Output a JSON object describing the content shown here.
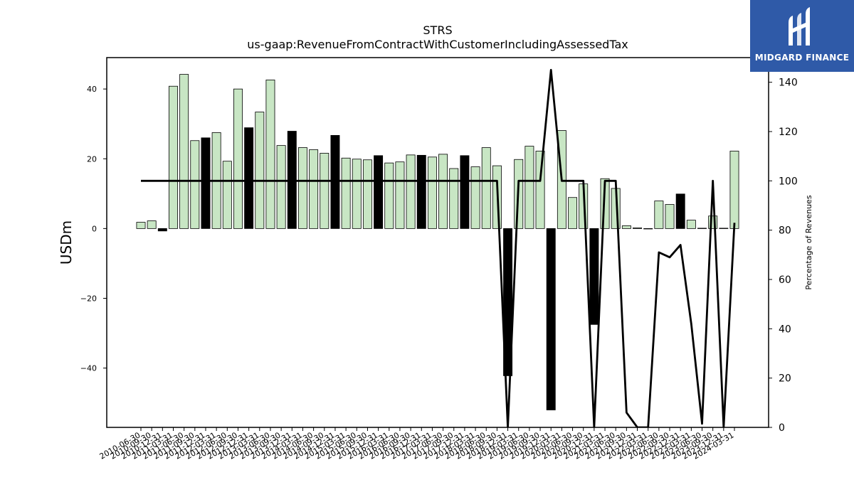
{
  "brand": {
    "name": "MIDGARD FINANCE",
    "logo_color": "#2f5aa8"
  },
  "chart_data": {
    "type": "bar",
    "title": "STRS",
    "subtitle": "us-gaap:RevenueFromContractWithCustomerIncludingAssessedTax",
    "ylabel": "USDm",
    "y2label": "Percentage of Revenues",
    "ylim": [
      -57,
      49
    ],
    "y2lim": [
      0,
      150
    ],
    "yticks": [
      -40,
      -20,
      0,
      20,
      40
    ],
    "y2ticks": [
      0,
      20,
      40,
      60,
      80,
      100,
      120,
      140
    ],
    "colors": {
      "positive_bar": "#c8e6c4",
      "highlight_bar": "#000000",
      "line": "#000000"
    },
    "categories": [
      "2010-06-30",
      "2010-09-30",
      "2010-12-31",
      "2011-03-31",
      "2011-06-30",
      "2011-09-30",
      "2011-12-31",
      "2012-03-31",
      "2012-06-30",
      "2012-09-30",
      "2012-12-31",
      "2013-03-31",
      "2013-06-30",
      "2013-09-30",
      "2013-12-31",
      "2014-03-31",
      "2014-06-30",
      "2014-09-30",
      "2014-12-31",
      "2015-03-31",
      "2015-06-30",
      "2015-09-30",
      "2015-12-31",
      "2016-03-31",
      "2016-06-30",
      "2016-09-30",
      "2016-12-31",
      "2017-03-31",
      "2017-06-30",
      "2017-09-30",
      "2017-12-31",
      "2018-03-31",
      "2018-06-30",
      "2018-09-30",
      "2018-12-31",
      "2019-03-31",
      "2019-06-30",
      "2019-09-30",
      "2019-12-31",
      "2020-03-31",
      "2020-06-30",
      "2020-09-30",
      "2020-12-31",
      "2021-03-31",
      "2021-06-30",
      "2021-09-30",
      "2021-12-31",
      "2022-03-31",
      "2022-06-30",
      "2022-09-30",
      "2022-12-31",
      "2023-03-31",
      "2023-06-30",
      "2023-09-30",
      "2023-12-31",
      "2024-03-31"
    ],
    "xticklabels": [
      "2010-06-30",
      "2010-09-30",
      "2010-12-31",
      "2011-03-31",
      "2011-06-30",
      "2011-09-30",
      "2011-12-31",
      "2012-03-31",
      "2012-06-30",
      "2012-09-30",
      "2012-12-31",
      "2013-03-31",
      "2013-06-30",
      "2013-09-30",
      "2013-12-31",
      "2014-03-31",
      "2014-06-30",
      "2014-09-30",
      "2014-12-31",
      "2015-03-31",
      "2015-06-30",
      "2015-09-30",
      "2015-12-31",
      "2016-03-31",
      "2016-06-30",
      "2016-09-30",
      "2016-12-31",
      "2017-03-31",
      "2017-06-30",
      "2017-09-30",
      "2017-12-31",
      "2018-03-31",
      "2018-06-30",
      "2018-09-30",
      "2018-12-31",
      "2019-03-31",
      "2019-06-30",
      "2019-09-30",
      "2019-12-31",
      "2020-03-31",
      "2020-06-30",
      "2020-09-30",
      "2020-12-31",
      "2021-03-31",
      "2021-06-30",
      "2021-09-30",
      "2021-12-31",
      "2022-03-31",
      "2022-06-30",
      "2022-09-30",
      "2022-12-31",
      "2023-03-31",
      "2023-06-30",
      "2023-09-30",
      "2023-12-31",
      "2024-03-31"
    ],
    "series": [
      {
        "type": "bar",
        "values": [
          1.8,
          2.2,
          -0.7,
          40.8,
          44.2,
          25.2,
          26.0,
          27.5,
          19.3,
          40.0,
          28.9,
          33.4,
          42.6,
          23.8,
          27.9,
          23.2,
          22.6,
          21.6,
          26.7,
          20.2,
          19.9,
          19.7,
          20.9,
          18.8,
          19.1,
          21.1,
          21.0,
          20.5,
          21.3,
          17.2,
          20.9,
          17.7,
          23.2,
          18.0,
          -42.2,
          19.8,
          23.6,
          22.2,
          -52.0,
          28.1,
          8.9,
          12.8,
          -27.5,
          14.3,
          11.5,
          0.8,
          0.2,
          0.0,
          7.9,
          6.9,
          9.9,
          2.4,
          0.1,
          3.6,
          0.1,
          22.2
        ],
        "highlight": [
          false,
          false,
          true,
          false,
          false,
          false,
          true,
          false,
          false,
          false,
          true,
          false,
          false,
          false,
          true,
          false,
          false,
          false,
          true,
          false,
          false,
          false,
          true,
          false,
          false,
          false,
          true,
          false,
          false,
          false,
          true,
          false,
          false,
          false,
          true,
          false,
          false,
          false,
          true,
          false,
          false,
          false,
          true,
          false,
          false,
          false,
          false,
          false,
          false,
          false,
          true,
          false,
          false,
          false,
          false,
          false
        ]
      },
      {
        "type": "line",
        "axis": "y2",
        "values": [
          100,
          100,
          100,
          100,
          100,
          100,
          100,
          100,
          100,
          100,
          100,
          100,
          100,
          100,
          100,
          100,
          100,
          100,
          100,
          100,
          100,
          100,
          100,
          100,
          100,
          100,
          100,
          100,
          100,
          100,
          100,
          100,
          100,
          100,
          0,
          100,
          100,
          100,
          145,
          100,
          100,
          100,
          0,
          100,
          100,
          6,
          0,
          0,
          71,
          69,
          74,
          42,
          1.5,
          100,
          0,
          83
        ]
      }
    ]
  }
}
